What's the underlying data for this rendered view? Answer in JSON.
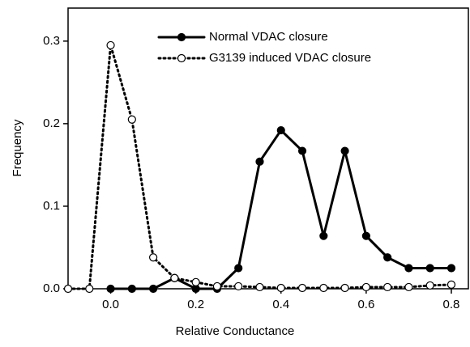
{
  "chart_data": {
    "type": "line",
    "xlabel": "Relative Conductance",
    "ylabel": "Frequency",
    "xlim": [
      -0.1,
      0.84
    ],
    "ylim": [
      0,
      0.34
    ],
    "xticks": [
      {
        "value": 0,
        "label": "0.0"
      },
      {
        "value": 0.2,
        "label": "0.2"
      },
      {
        "value": 0.4,
        "label": "0.4"
      },
      {
        "value": 0.6,
        "label": "0.6"
      },
      {
        "value": 0.8,
        "label": "0.8"
      }
    ],
    "yticks": [
      {
        "value": 0,
        "label": "0.0"
      },
      {
        "value": 0.1,
        "label": "0.1"
      },
      {
        "value": 0.2,
        "label": "0.2"
      },
      {
        "value": 0.3,
        "label": "0.3"
      }
    ],
    "legend": "top",
    "series": [
      {
        "name": "Normal VDAC closure",
        "color": "#000000",
        "line_style": "solid",
        "marker": "filled",
        "x": [
          0,
          0.05,
          0.1,
          0.15,
          0.2,
          0.25,
          0.3,
          0.35,
          0.4,
          0.45,
          0.5,
          0.55,
          0.6,
          0.65,
          0.7,
          0.75,
          0.8
        ],
        "values": [
          0,
          0,
          0,
          0.013,
          0,
          0,
          0.025,
          0.154,
          0.192,
          0.167,
          0.064,
          0.167,
          0.064,
          0.038,
          0.025,
          0.025,
          0.025
        ]
      },
      {
        "name": "G3139 induced VDAC closure",
        "color": "#000000",
        "line_style": "dotted",
        "marker": "open",
        "x": [
          -0.1,
          -0.05,
          0,
          0.05,
          0.1,
          0.15,
          0.2,
          0.25,
          0.3,
          0.35,
          0.4,
          0.45,
          0.5,
          0.55,
          0.6,
          0.65,
          0.7,
          0.75,
          0.8
        ],
        "values": [
          0,
          0,
          0.295,
          0.205,
          0.038,
          0.013,
          0.008,
          0.003,
          0.003,
          0.002,
          0.001,
          0.001,
          0.001,
          0.001,
          0.002,
          0.002,
          0.002,
          0.004,
          0.005
        ]
      }
    ]
  }
}
